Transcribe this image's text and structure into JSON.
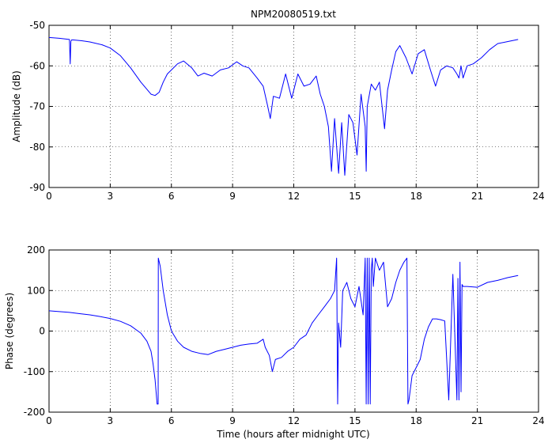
{
  "chart_data": [
    {
      "type": "line",
      "title": "NPM20080519.txt",
      "xlabel": "",
      "ylabel": "Amplitude (dB)",
      "xlim": [
        0,
        24
      ],
      "ylim": [
        -90,
        -50
      ],
      "xticks": [
        0,
        3,
        6,
        9,
        12,
        15,
        18,
        21,
        24
      ],
      "yticks": [
        -90,
        -80,
        -70,
        -60,
        -50
      ],
      "grid": true,
      "color": "#0000ff",
      "series": [
        {
          "x": [
            0,
            0.5,
            1.0,
            1.04,
            1.07,
            1.1,
            1.2,
            1.6,
            2.0,
            2.6,
            3.0,
            3.5,
            4.0,
            4.5,
            5.0,
            5.2,
            5.4,
            5.6,
            5.8,
            6.0,
            6.3,
            6.6,
            7.0,
            7.3,
            7.6,
            8.0,
            8.4,
            8.8,
            9.2,
            9.5,
            9.8,
            10.2,
            10.5,
            10.7,
            10.85,
            11.0,
            11.3,
            11.6,
            11.9,
            12.2,
            12.5,
            12.8,
            13.1,
            13.3,
            13.5,
            13.7,
            13.85,
            14.0,
            14.2,
            14.35,
            14.5,
            14.7,
            14.9,
            15.1,
            15.3,
            15.5,
            15.55,
            15.6,
            15.8,
            16.0,
            16.2,
            16.45,
            16.6,
            16.8,
            17.0,
            17.2,
            17.5,
            17.8,
            18.1,
            18.4,
            18.7,
            18.95,
            19.2,
            19.5,
            19.8,
            20.0,
            20.1,
            20.2,
            20.3,
            20.5,
            20.8,
            21.2,
            21.6,
            22.0,
            22.5,
            23.0
          ],
          "y": [
            -53,
            -53.2,
            -53.5,
            -59.5,
            -54,
            -53.6,
            -53.6,
            -53.8,
            -54.1,
            -54.8,
            -55.6,
            -57.5,
            -60.5,
            -64,
            -67,
            -67.3,
            -66.5,
            -64,
            -62,
            -61,
            -59.5,
            -58.8,
            -60.5,
            -62.5,
            -61.8,
            -62.5,
            -61,
            -60.5,
            -59,
            -60,
            -60.5,
            -63,
            -65,
            -69.5,
            -73,
            -67.5,
            -68,
            -62,
            -68,
            -62,
            -65,
            -64.5,
            -62.5,
            -67,
            -70,
            -75,
            -86,
            -73,
            -86.5,
            -74,
            -87,
            -72,
            -74,
            -82,
            -67,
            -75,
            -86,
            -70,
            -64.5,
            -66,
            -64,
            -75.5,
            -66,
            -61,
            -56.5,
            -55,
            -58,
            -62,
            -57,
            -56,
            -61,
            -65,
            -61,
            -60,
            -60.5,
            -62,
            -63,
            -60,
            -63,
            -60,
            -59.5,
            -58,
            -56,
            -54.5,
            -54,
            -53.5
          ]
        }
      ]
    },
    {
      "type": "line",
      "title": "",
      "xlabel": "Time (hours after midnight UTC)",
      "ylabel": "Phase (degrees)",
      "xlim": [
        0,
        24
      ],
      "ylim": [
        -200,
        200
      ],
      "xticks": [
        0,
        3,
        6,
        9,
        12,
        15,
        18,
        21,
        24
      ],
      "yticks": [
        -200,
        -100,
        0,
        100,
        200
      ],
      "grid": true,
      "color": "#0000ff",
      "series": [
        {
          "x": [
            0,
            0.5,
            1.0,
            1.5,
            2.0,
            2.5,
            3.0,
            3.5,
            4.0,
            4.5,
            4.8,
            5.0,
            5.1,
            5.2,
            5.3,
            5.35,
            5.36,
            5.45,
            5.6,
            5.8,
            6.0,
            6.3,
            6.6,
            7.0,
            7.4,
            7.8,
            8.2,
            8.6,
            9.0,
            9.4,
            9.8,
            10.2,
            10.5,
            10.6,
            10.8,
            10.95,
            11.1,
            11.4,
            11.7,
            12.0,
            12.3,
            12.6,
            12.9,
            13.2,
            13.5,
            13.8,
            14.0,
            14.1,
            14.15,
            14.2,
            14.3,
            14.4,
            14.6,
            14.8,
            15.0,
            15.2,
            15.4,
            15.5,
            15.55,
            15.6,
            15.65,
            15.7,
            15.75,
            15.8,
            15.85,
            15.9,
            16.0,
            16.2,
            16.4,
            16.6,
            16.8,
            17.0,
            17.2,
            17.4,
            17.55,
            17.6,
            17.65,
            17.8,
            18.0,
            18.2,
            18.4,
            18.6,
            18.8,
            19.0,
            19.2,
            19.4,
            19.6,
            19.8,
            20.0,
            20.05,
            20.1,
            20.15,
            20.2,
            20.25,
            20.3,
            20.5,
            21.0,
            21.5,
            22.0,
            22.5,
            23.0
          ],
          "y": [
            50,
            48,
            46,
            43,
            40,
            36,
            31,
            24,
            13,
            -5,
            -25,
            -50,
            -80,
            -120,
            -180,
            -180,
            180,
            160,
            100,
            40,
            0,
            -25,
            -40,
            -50,
            -55,
            -58,
            -50,
            -45,
            -40,
            -35,
            -32,
            -30,
            -20,
            -40,
            -60,
            -100,
            -70,
            -65,
            -50,
            -40,
            -20,
            -10,
            20,
            40,
            60,
            80,
            100,
            180,
            -180,
            20,
            -40,
            100,
            120,
            80,
            60,
            110,
            40,
            180,
            -180,
            180,
            -180,
            180,
            -180,
            150,
            180,
            110,
            180,
            150,
            170,
            60,
            80,
            120,
            150,
            170,
            180,
            -180,
            -170,
            -110,
            -90,
            -70,
            -20,
            10,
            30,
            30,
            28,
            25,
            -170,
            140,
            -170,
            130,
            -170,
            170,
            -150,
            115,
            110,
            110,
            108,
            120,
            125,
            132,
            137
          ]
        }
      ]
    }
  ]
}
